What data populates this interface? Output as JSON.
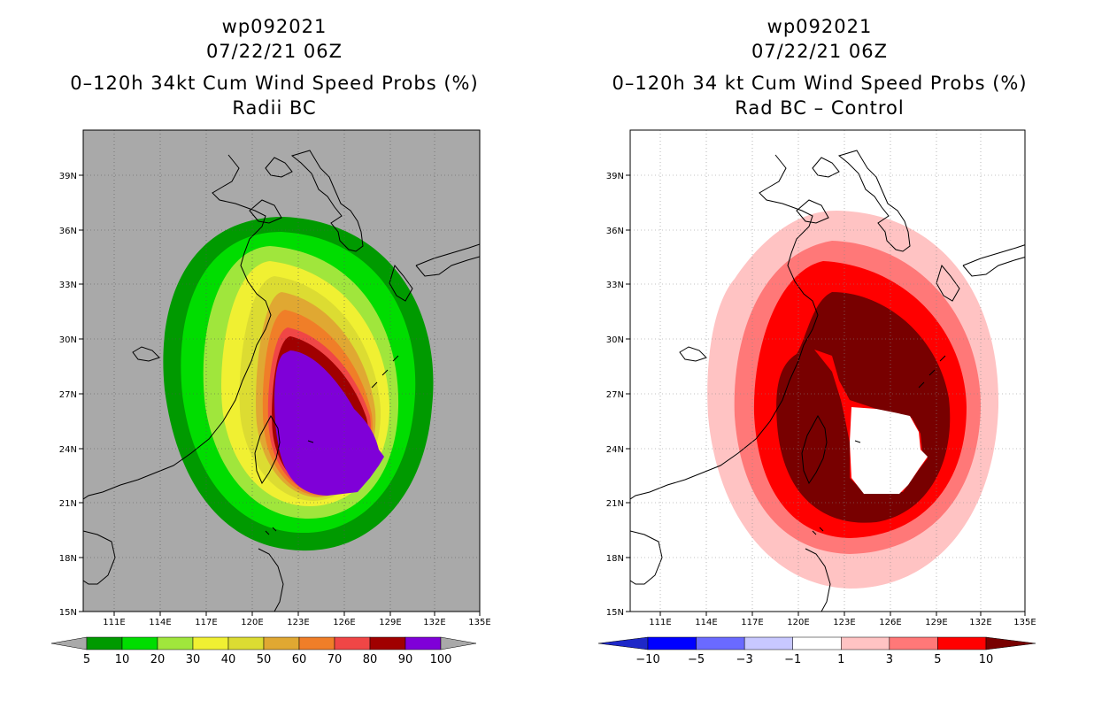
{
  "left_panel": {
    "title_lines": [
      "wp092021",
      "07/22/21 06Z",
      "0–120h 34kt Cum Wind Speed Probs (%)",
      "Radii BC"
    ],
    "background": "#a9a9a9",
    "colorbar": {
      "colors": [
        "#a9a9a9",
        "#009a00",
        "#00dd00",
        "#a0e63c",
        "#f0f032",
        "#dcdc32",
        "#e0a832",
        "#f07e28",
        "#f04646",
        "#a00000",
        "#7f00d8",
        "#a9a9a9"
      ],
      "labels": [
        "5",
        "10",
        "20",
        "30",
        "40",
        "50",
        "60",
        "70",
        "80",
        "90",
        "100"
      ]
    }
  },
  "right_panel": {
    "title_lines": [
      "wp092021",
      "07/22/21 06Z",
      "0–120h 34 kt Cum Wind Speed Probs (%)",
      "Rad BC – Control"
    ],
    "background": "#ffffff",
    "colorbar": {
      "colors": [
        "#1e28c8",
        "#0000ff",
        "#6a6aff",
        "#c8c8ff",
        "#ffffff",
        "#ffc3c3",
        "#ff7878",
        "#ff0000",
        "#780000"
      ],
      "labels": [
        "−10",
        "−5",
        "−3",
        "−1",
        "1",
        "3",
        "5",
        "10"
      ]
    }
  },
  "map": {
    "lon_ticks": [
      "111E",
      "114E",
      "117E",
      "120E",
      "123E",
      "126E",
      "129E",
      "132E",
      "135E"
    ],
    "lat_ticks": [
      "39N",
      "36N",
      "33N",
      "30N",
      "27N",
      "24N",
      "21N",
      "18N",
      "15N"
    ]
  }
}
